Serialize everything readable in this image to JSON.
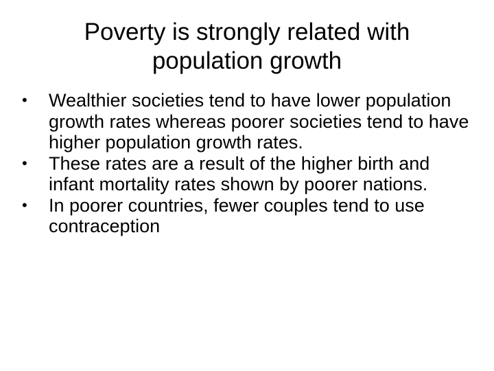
{
  "slide": {
    "title": "Poverty is strongly related with population growth",
    "bullet_symbol": "•",
    "bullets": [
      "Wealthier societies tend to have lower population growth rates whereas poorer societies tend to have higher population growth rates.",
      "These rates are a result of the higher birth and infant mortality rates shown by poorer nations.",
      "In poorer countries, fewer couples tend to use contraception"
    ]
  }
}
